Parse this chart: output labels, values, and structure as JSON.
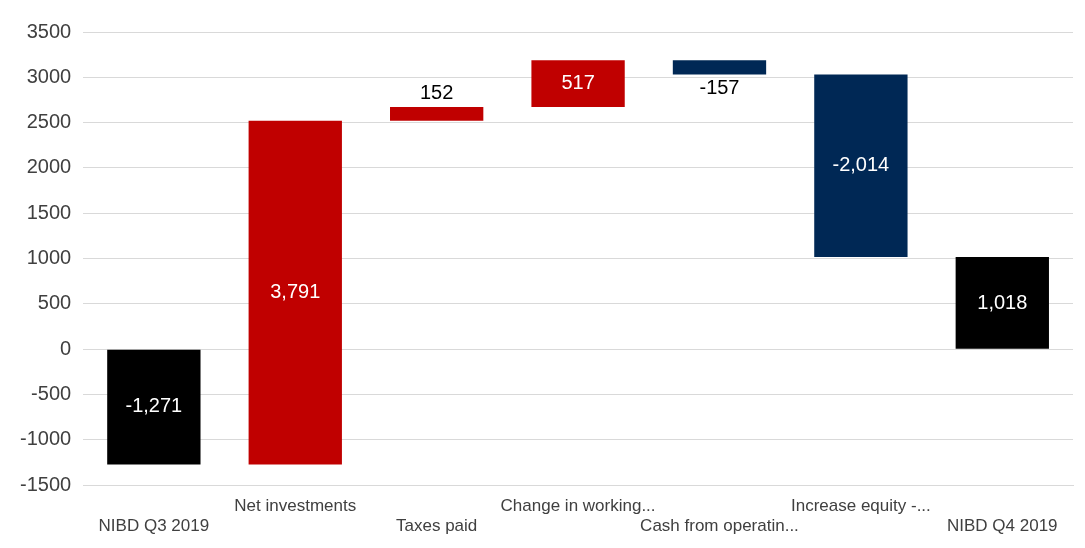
{
  "chart_data": {
    "type": "bar",
    "categories": [
      "NIBD Q3 2019",
      "Net investments",
      "Taxes paid",
      "Change in working...",
      "Cash from operatin...",
      "Increase equity -...",
      "NIBD Q4 2019"
    ],
    "values": [
      -1271,
      3791,
      152,
      517,
      -157,
      -2014,
      1018
    ],
    "base": [
      0,
      -1271,
      2520,
      2672,
      3189,
      3032,
      0
    ],
    "colors": [
      "#000000",
      "#c00000",
      "#c00000",
      "#c00000",
      "#002855",
      "#002855",
      "#000000"
    ],
    "value_labels": [
      "-1,271",
      "3,791",
      "152",
      "517",
      "-157",
      "-2,014",
      "1,018"
    ],
    "ylim": [
      -1500,
      3500
    ],
    "yticks": [
      -1500,
      -1000,
      -500,
      0,
      500,
      1000,
      1500,
      2000,
      2500,
      3000,
      3500
    ],
    "grid": "y",
    "legend": false
  }
}
